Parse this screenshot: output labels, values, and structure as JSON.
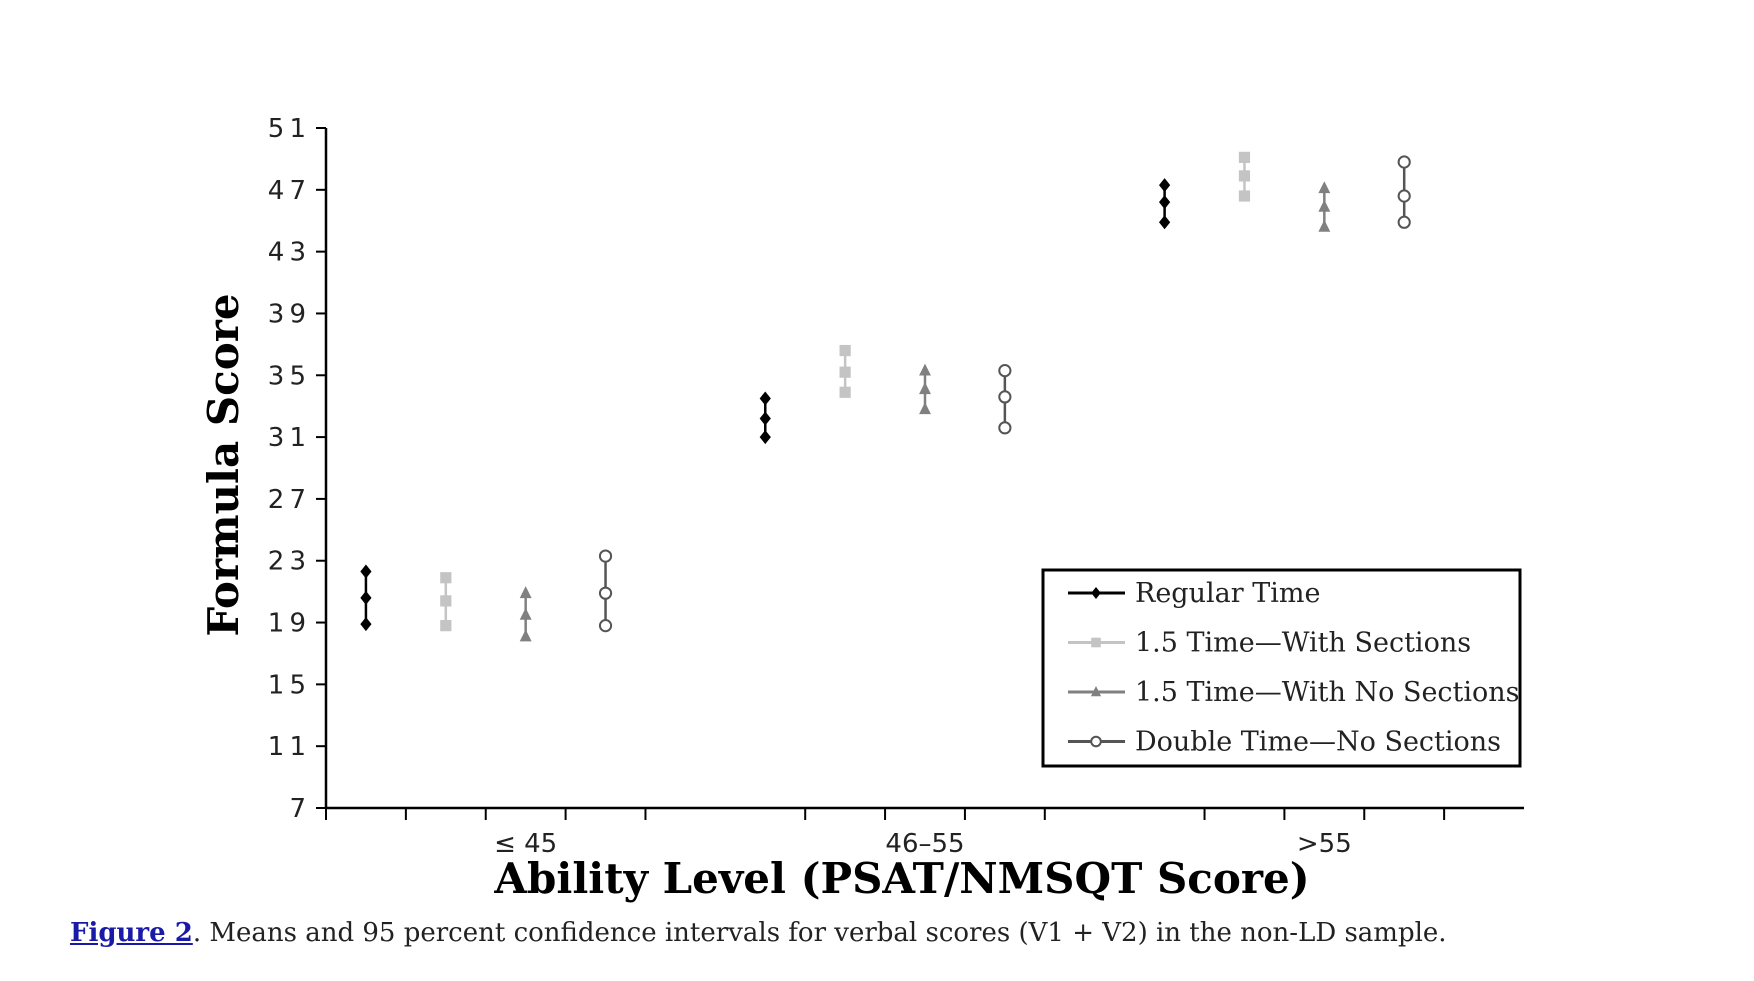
{
  "chart_data": {
    "type": "scatter",
    "subtype": "means with 95% confidence interval error bars",
    "categories": [
      "≤ 45",
      "46–55",
      ">55"
    ],
    "xlabel": "Ability Level (PSAT/NMSQT Score)",
    "ylabel": "Formula Score",
    "ylim": [
      7,
      51
    ],
    "yticks": [
      7,
      11,
      15,
      19,
      23,
      27,
      31,
      35,
      39,
      43,
      47,
      51
    ],
    "grid": false,
    "legend_position": "bottom-right",
    "series": [
      {
        "name": "Regular Time",
        "marker": "diamond",
        "color": "#000000",
        "mean": [
          20.6,
          32.2,
          46.2
        ],
        "lower": [
          18.9,
          31.0,
          44.9
        ],
        "upper": [
          22.3,
          33.5,
          47.3
        ]
      },
      {
        "name": "1.5 Time—With Sections",
        "marker": "square",
        "color": "#c4c4c4",
        "mean": [
          20.4,
          35.2,
          47.9
        ],
        "lower": [
          18.8,
          33.9,
          46.6
        ],
        "upper": [
          21.9,
          36.6,
          49.1
        ]
      },
      {
        "name": "1.5 Time—With No Sections",
        "marker": "triangle",
        "color": "#808080",
        "mean": [
          19.5,
          34.1,
          45.9
        ],
        "lower": [
          18.1,
          32.8,
          44.6
        ],
        "upper": [
          20.9,
          35.3,
          47.1
        ]
      },
      {
        "name": "Double Time—No Sections",
        "marker": "circle",
        "color": "#555555",
        "mean": [
          20.9,
          33.6,
          46.6
        ],
        "lower": [
          18.8,
          31.6,
          44.9
        ],
        "upper": [
          23.3,
          35.3,
          48.8
        ]
      }
    ]
  },
  "caption": {
    "label": "Figure 2",
    "text": ". Means and 95 percent confidence intervals for verbal scores (V1 + V2) in the non-LD sample."
  }
}
